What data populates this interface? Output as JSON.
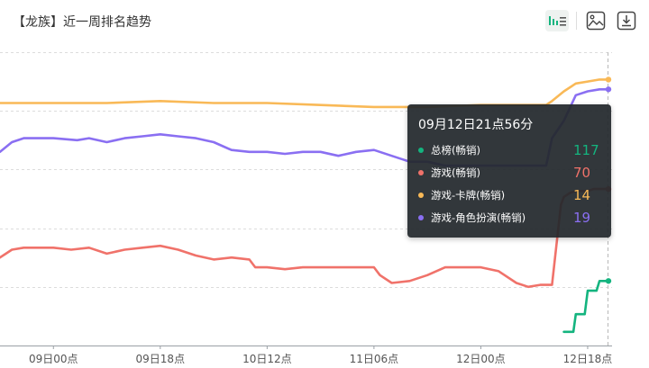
{
  "title": "【龙族】近一周排名趋势",
  "toolbar": {
    "icons": [
      "bar-line-toggle-icon",
      "image-export-icon",
      "download-icon"
    ]
  },
  "tooltip": {
    "time": "09月12日21点56分",
    "items": [
      {
        "name": "总榜(畅销)",
        "value": "117",
        "color": "#14b47f"
      },
      {
        "name": "游戏(畅销)",
        "value": "70",
        "color": "#f0726a"
      },
      {
        "name": "游戏-卡牌(畅销)",
        "value": "14",
        "color": "#f9b957"
      },
      {
        "name": "游戏-角色扮演(畅销)",
        "value": "19",
        "color": "#8a6ff2"
      }
    ]
  },
  "chart_data": {
    "type": "line",
    "title": "【龙族】近一周排名趋势",
    "x_tick_labels": [
      "09日00点",
      "09日18点",
      "10日12点",
      "11日06点",
      "12日00点",
      "12日18点"
    ],
    "x_tick_hours": [
      0,
      18,
      36,
      54,
      72,
      90
    ],
    "x_range_hours": [
      -9,
      93.5
    ],
    "y_inverted": true,
    "ylim": [
      0,
      150
    ],
    "grid": true,
    "legend": "none",
    "series": [
      {
        "name": "总榜(畅销)",
        "color": "#14b47f",
        "x": [
          86,
          87.6,
          88,
          89.5,
          90,
          91.5,
          92,
          93.5
        ],
        "y": [
          143,
          143,
          134,
          134,
          122,
          122,
          117,
          117
        ]
      },
      {
        "name": "游戏(畅销)",
        "color": "#f0726a",
        "x": [
          -9,
          -8,
          -7,
          -5,
          -3,
          0,
          3,
          6,
          9,
          12,
          15,
          18,
          21,
          24,
          27,
          30,
          33,
          34,
          36,
          39,
          42,
          45,
          48,
          51,
          54,
          55,
          57,
          60,
          63,
          66,
          69,
          72,
          75,
          76,
          78,
          80,
          82,
          84,
          85.5,
          86,
          87,
          88,
          89,
          90,
          91,
          92,
          93.5
        ],
        "y": [
          105,
          103,
          101,
          100,
          100,
          100,
          101,
          100,
          103,
          101,
          100,
          99,
          101,
          104,
          106,
          105,
          106,
          110,
          110,
          111,
          110,
          110,
          110,
          110,
          110,
          114,
          118,
          117,
          114,
          110,
          110,
          110,
          112,
          114,
          118,
          120,
          119,
          119,
          78,
          74,
          72,
          71,
          71,
          71,
          70,
          70,
          70
        ]
      },
      {
        "name": "游戏-卡牌(畅销)",
        "color": "#f9b957",
        "x": [
          -9,
          0,
          9,
          18,
          27,
          36,
          45,
          54,
          63,
          72,
          80,
          83,
          84,
          86,
          88,
          90,
          92,
          93.5
        ],
        "y": [
          26,
          26,
          26,
          25,
          26,
          26,
          27,
          28,
          28,
          27,
          27,
          27,
          25,
          20,
          16,
          15,
          14,
          14
        ],
        "y_note": "values used for drawing"
      },
      {
        "name": "游戏-角色扮演(畅销)",
        "color": "#8a6ff2",
        "x": [
          -9,
          -7,
          -5,
          0,
          4,
          6,
          9,
          12,
          15,
          18,
          21,
          24,
          27,
          30,
          33,
          35,
          36,
          39,
          42,
          45,
          48,
          51,
          54,
          57,
          60,
          63,
          66,
          69,
          72,
          75,
          78,
          81,
          83,
          84,
          86,
          88,
          90,
          92,
          93.5
        ],
        "y": [
          51,
          46,
          44,
          44,
          45,
          44,
          46,
          44,
          43,
          42,
          43,
          44,
          46,
          50,
          51,
          51,
          51,
          52,
          51,
          51,
          53,
          51,
          50,
          53,
          56,
          56,
          58,
          58,
          58,
          58,
          58,
          58,
          58,
          44,
          35,
          22,
          20,
          19,
          19
        ]
      }
    ]
  }
}
